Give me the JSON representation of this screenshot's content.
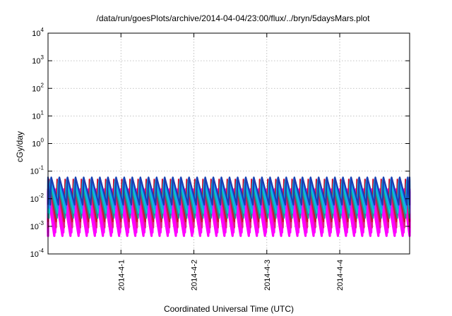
{
  "chart_data": {
    "type": "line",
    "title": "/data/run/goesPlots/archive/2014-04-04/23:00/flux/../bryn/5daysMars.plot",
    "xlabel": "Coordinated Universal Time (UTC)",
    "ylabel": "cGy/day",
    "yscale": "log",
    "ylim": [
      0.0001,
      10000
    ],
    "xlim": [
      "2014-03-31T00:00",
      "2014-04-04T23:00"
    ],
    "grid": true,
    "legend": "none",
    "y_ticks": [
      {
        "base": "10",
        "exp": "-4",
        "value": 0.0001
      },
      {
        "base": "10",
        "exp": "-3",
        "value": 0.001
      },
      {
        "base": "10",
        "exp": "-2",
        "value": 0.01
      },
      {
        "base": "10",
        "exp": "-1",
        "value": 0.1
      },
      {
        "base": "10",
        "exp": "0",
        "value": 1
      },
      {
        "base": "10",
        "exp": "1",
        "value": 10
      },
      {
        "base": "10",
        "exp": "2",
        "value": 100
      },
      {
        "base": "10",
        "exp": "3",
        "value": 1000
      },
      {
        "base": "10",
        "exp": "4",
        "value": 10000
      }
    ],
    "x_ticks": [
      {
        "label": "2014-4-1",
        "value": "2014-04-01T00:00"
      },
      {
        "label": "2014-4-2",
        "value": "2014-04-02T00:00"
      },
      {
        "label": "2014-4-3",
        "value": "2014-04-03T00:00"
      },
      {
        "label": "2014-4-4",
        "value": "2014-04-04T00:00"
      }
    ],
    "cycles_per_day": 9,
    "series": [
      {
        "color": "#ff00ff",
        "peak": 0.018,
        "trough": 0.00045,
        "phase_h": -0.6
      },
      {
        "color": "#ff00ff",
        "peak": 0.022,
        "trough": 0.0006,
        "phase_h": -0.3
      },
      {
        "color": "#e0208a",
        "peak": 0.03,
        "trough": 0.0009,
        "phase_h": 0.0
      },
      {
        "color": "#cc1133",
        "peak": 0.05,
        "trough": 0.0015,
        "phase_h": 0.0
      },
      {
        "color": "#2c8a8a",
        "peak": 0.035,
        "trough": 0.002,
        "phase_h": 0.3
      },
      {
        "color": "#00c8d0",
        "peak": 0.045,
        "trough": 0.003,
        "phase_h": 0.45
      },
      {
        "color": "#1e90ff",
        "peak": 0.055,
        "trough": 0.0045,
        "phase_h": 0.6
      },
      {
        "color": "#1a3fb0",
        "peak": 0.06,
        "trough": 0.006,
        "phase_h": 0.75
      }
    ]
  }
}
